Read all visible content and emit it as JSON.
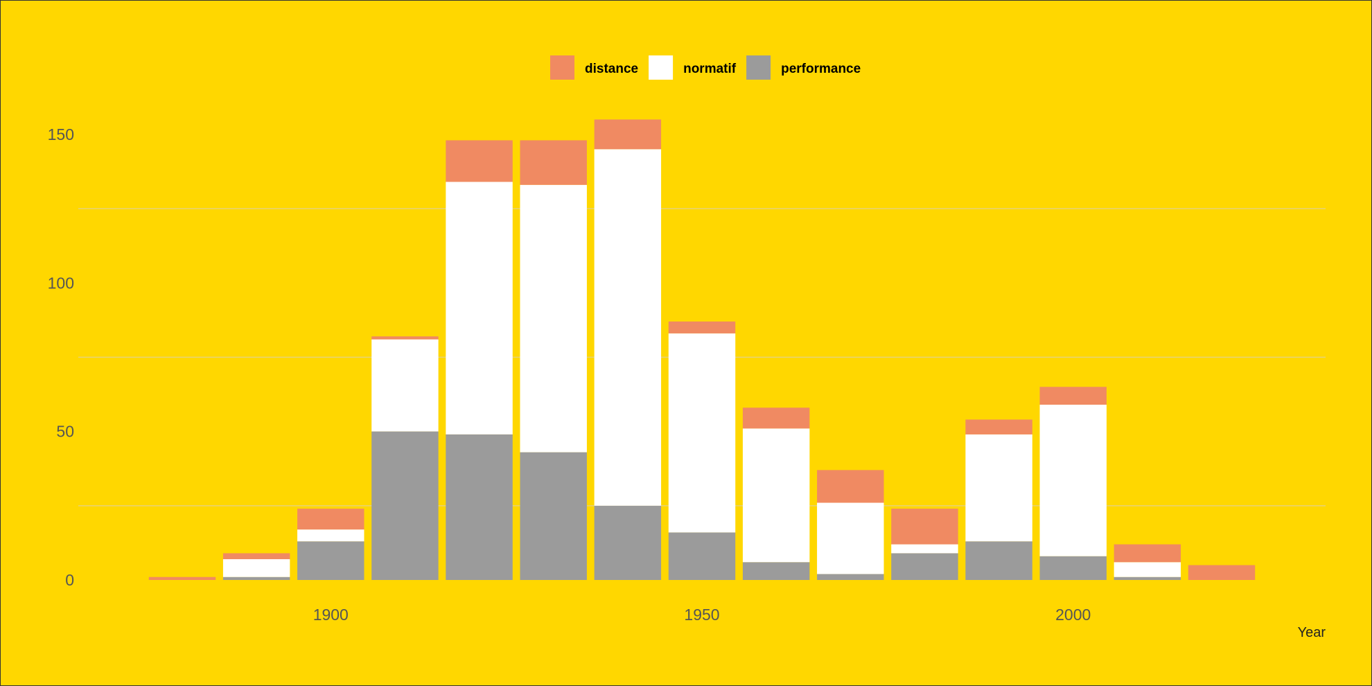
{
  "chart_data": {
    "type": "bar",
    "stacked": true,
    "xlabel": "Year",
    "ylabel": "",
    "xlim": [
      1866,
      2034
    ],
    "ylim": [
      0,
      160
    ],
    "x_ticks": [
      1900,
      1950,
      2000
    ],
    "y_ticks": [
      0,
      50,
      100,
      150
    ],
    "grid": "horizontal minor lines",
    "legend_position": "top",
    "bin_width": 10,
    "x": [
      1880,
      1890,
      1900,
      1910,
      1920,
      1930,
      1940,
      1950,
      1960,
      1970,
      1980,
      1990,
      2000,
      2010,
      2020
    ],
    "series": [
      {
        "name": "performance",
        "color": "#9b9b9b",
        "values": [
          0,
          1,
          13,
          50,
          49,
          43,
          25,
          16,
          6,
          2,
          9,
          13,
          8,
          1,
          0
        ]
      },
      {
        "name": "normatif",
        "color": "#ffffff",
        "values": [
          0,
          6,
          4,
          31,
          85,
          90,
          120,
          67,
          45,
          24,
          3,
          36,
          51,
          5,
          0
        ]
      },
      {
        "name": "distance",
        "color": "#f08a62",
        "values": [
          1,
          2,
          7,
          1,
          14,
          15,
          10,
          4,
          7,
          11,
          12,
          5,
          6,
          6,
          5
        ]
      }
    ],
    "legend": [
      "distance",
      "normatif",
      "performance"
    ],
    "colors": {
      "background": "#ffd700",
      "grid": "#e6d27a",
      "tick_text": "#555555"
    }
  }
}
